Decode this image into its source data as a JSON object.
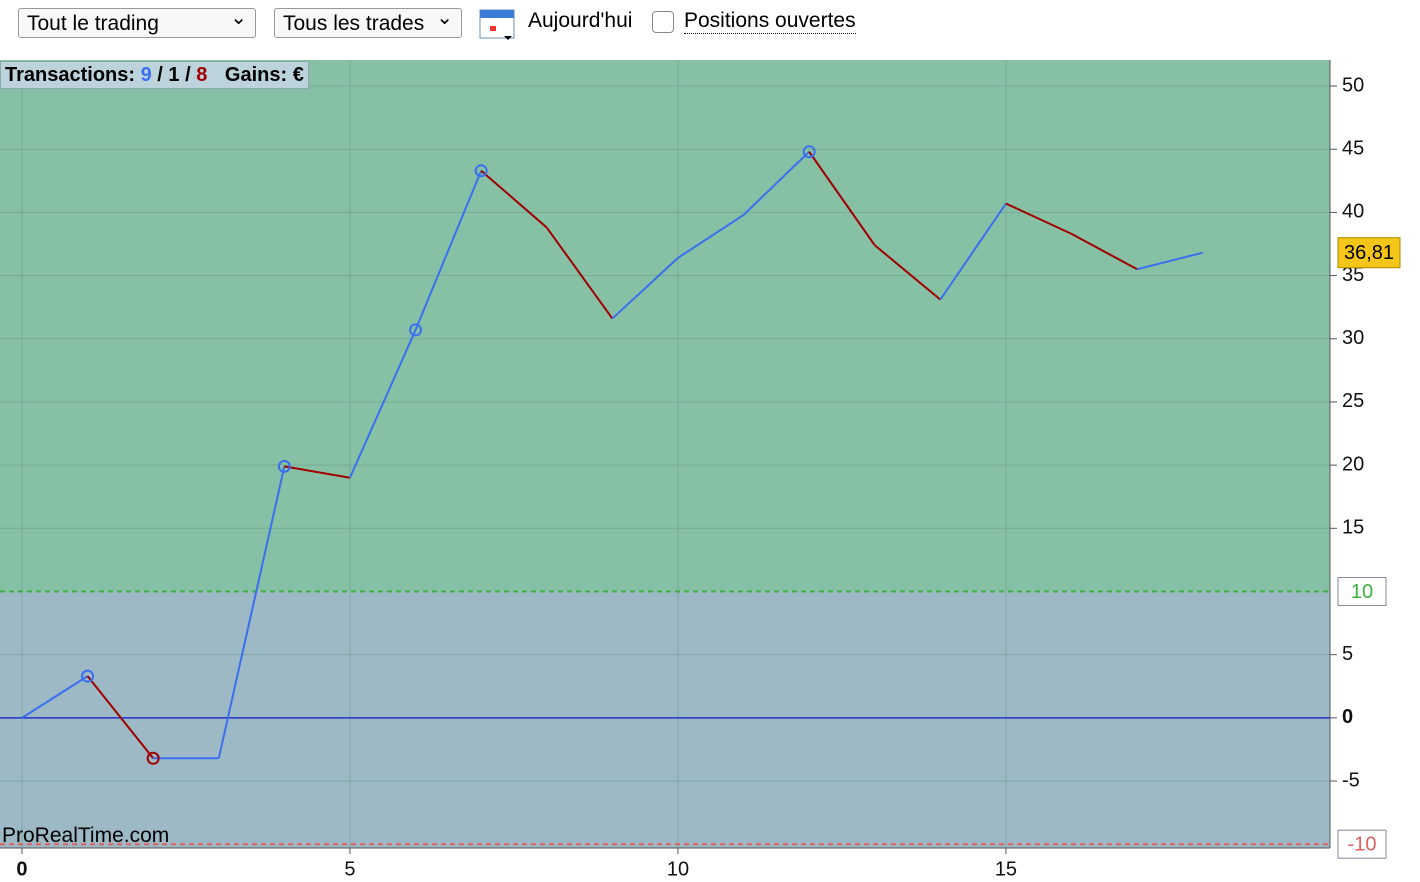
{
  "toolbar": {
    "scope": "Tout le trading",
    "trades": "Tous les trades",
    "date": "Aujourd'hui",
    "open_positions": "Positions ouvertes"
  },
  "summary": {
    "label": "Transactions:",
    "winning": 9,
    "sep1": "/",
    "neutral": 1,
    "sep2": "/",
    "losing": 8,
    "gains": "Gains: €"
  },
  "watermark": "ProRealTime.com",
  "chart_data": {
    "type": "line",
    "x": [
      0,
      1,
      2,
      3,
      4,
      5,
      6,
      7,
      8,
      9,
      10,
      11,
      12,
      13,
      14,
      15,
      16,
      17,
      18
    ],
    "series": [
      {
        "name": null,
        "rise_color": "#3a6ff0",
        "fall_color": "#a00000",
        "values": [
          0,
          3.3,
          -3.2,
          -3.2,
          19.9,
          19.0,
          30.7,
          43.3,
          38.8,
          31.6,
          36.4,
          39.8,
          44.8,
          37.4,
          33.1,
          40.7,
          38.3,
          35.5,
          36.81
        ],
        "value_labels": [
          null,
          null,
          null,
          null,
          null,
          null,
          null,
          null,
          null,
          null,
          null,
          null,
          null,
          null,
          null,
          null,
          null,
          null,
          "36,81"
        ],
        "markers": [
          1,
          2,
          4,
          6,
          7,
          12
        ]
      }
    ],
    "xlim": [
      -0.335,
      19.94
    ],
    "xticks": [
      0,
      5,
      10,
      15
    ],
    "ylim": [
      -10.3,
      52.06
    ],
    "yticks": [
      -5,
      0,
      5,
      15,
      20,
      25,
      30,
      35,
      40,
      45,
      50
    ],
    "thresholds": [
      {
        "value": 10,
        "color": "#3cb043"
      },
      {
        "value": -10,
        "color": "#e06060"
      }
    ],
    "zero_line_color": "#2233cc",
    "grid": true
  }
}
